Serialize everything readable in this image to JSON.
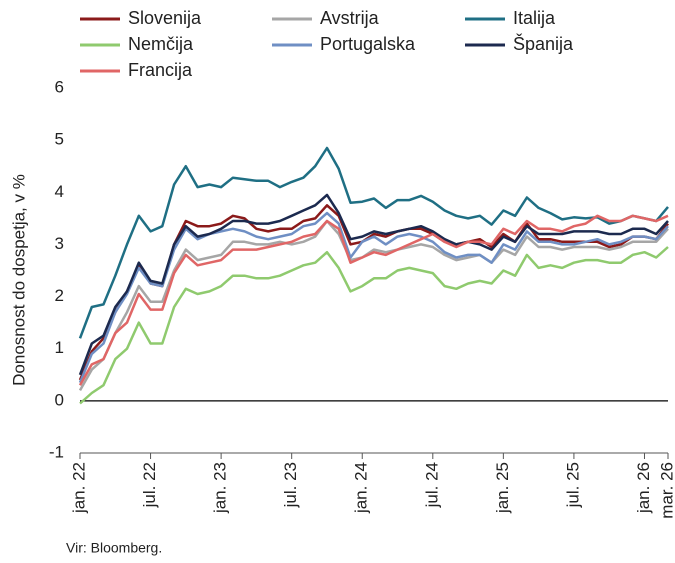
{
  "chart_data": {
    "type": "line",
    "y_label": "Donosnost do dospetja, v %",
    "source": "Vir: Bloomberg.",
    "categories": [
      "jan. 22",
      null,
      null,
      null,
      null,
      null,
      "jul. 22",
      null,
      null,
      null,
      null,
      null,
      "jan. 23",
      null,
      null,
      null,
      null,
      null,
      "jul. 23",
      null,
      null,
      null,
      null,
      null,
      "jan. 24",
      null,
      null,
      null,
      null,
      null,
      "jul. 24",
      null,
      null,
      null,
      null,
      null,
      "jan. 25",
      null,
      null,
      null,
      null,
      null,
      "jul. 25",
      null,
      null,
      null,
      null,
      null,
      "jan. 26",
      null,
      "mar. 26"
    ],
    "ylim": [
      -1,
      6
    ],
    "yticks": [
      -1,
      0,
      1,
      2,
      3,
      4,
      5,
      6
    ],
    "series": [
      {
        "name": "Slovenija",
        "color": "#8b1a1a",
        "values": [
          0.4,
          0.95,
          1.2,
          1.7,
          2.1,
          2.6,
          2.25,
          2.2,
          3.0,
          3.45,
          3.35,
          3.35,
          3.4,
          3.55,
          3.5,
          3.3,
          3.25,
          3.3,
          3.3,
          3.45,
          3.5,
          3.75,
          3.55,
          3.0,
          3.05,
          3.2,
          3.15,
          3.25,
          3.3,
          3.3,
          3.2,
          3.05,
          3.0,
          3.05,
          3.1,
          2.95,
          3.2,
          3.05,
          3.4,
          3.1,
          3.1,
          3.05,
          3.05,
          3.05,
          3.05,
          2.95,
          3.0,
          3.15,
          3.15,
          3.1,
          3.4
        ]
      },
      {
        "name": "Avstrija",
        "color": "#a6a6a6",
        "values": [
          0.2,
          0.6,
          0.8,
          1.3,
          1.7,
          2.2,
          1.9,
          1.9,
          2.5,
          2.9,
          2.7,
          2.75,
          2.8,
          3.05,
          3.05,
          3.0,
          3.0,
          3.05,
          3.0,
          3.05,
          3.15,
          3.45,
          3.2,
          2.7,
          2.75,
          2.9,
          2.85,
          2.9,
          2.95,
          3.0,
          2.95,
          2.8,
          2.7,
          2.75,
          2.8,
          2.65,
          2.9,
          2.8,
          3.15,
          2.95,
          2.95,
          2.9,
          2.95,
          2.95,
          2.95,
          2.9,
          2.95,
          3.05,
          3.05,
          3.05,
          3.3
        ]
      },
      {
        "name": "Italija",
        "color": "#1f6f84",
        "values": [
          1.2,
          1.8,
          1.85,
          2.4,
          3.0,
          3.55,
          3.25,
          3.35,
          4.15,
          4.5,
          4.1,
          4.15,
          4.1,
          4.28,
          4.25,
          4.22,
          4.22,
          4.1,
          4.2,
          4.28,
          4.5,
          4.85,
          4.45,
          3.8,
          3.82,
          3.88,
          3.7,
          3.85,
          3.85,
          3.93,
          3.82,
          3.65,
          3.55,
          3.5,
          3.55,
          3.38,
          3.65,
          3.55,
          3.9,
          3.7,
          3.6,
          3.48,
          3.52,
          3.5,
          3.52,
          3.4,
          3.45,
          3.55,
          3.5,
          3.45,
          3.72
        ]
      },
      {
        "name": "Nemčija",
        "color": "#8fca6e",
        "values": [
          -0.05,
          0.15,
          0.3,
          0.8,
          1.0,
          1.5,
          1.1,
          1.1,
          1.8,
          2.15,
          2.05,
          2.1,
          2.2,
          2.4,
          2.4,
          2.35,
          2.35,
          2.4,
          2.5,
          2.6,
          2.65,
          2.85,
          2.55,
          2.1,
          2.2,
          2.35,
          2.35,
          2.5,
          2.55,
          2.5,
          2.45,
          2.2,
          2.15,
          2.25,
          2.3,
          2.25,
          2.5,
          2.4,
          2.8,
          2.55,
          2.6,
          2.55,
          2.65,
          2.7,
          2.7,
          2.65,
          2.65,
          2.8,
          2.85,
          2.75,
          2.95
        ]
      },
      {
        "name": "Portugalska",
        "color": "#6f8fc4",
        "values": [
          0.35,
          0.9,
          1.1,
          1.7,
          2.05,
          2.55,
          2.25,
          2.2,
          2.9,
          3.3,
          3.1,
          3.2,
          3.25,
          3.3,
          3.25,
          3.15,
          3.1,
          3.15,
          3.2,
          3.35,
          3.4,
          3.6,
          3.4,
          2.75,
          3.05,
          3.15,
          3.0,
          3.15,
          3.2,
          3.15,
          3.05,
          2.85,
          2.75,
          2.8,
          2.8,
          2.65,
          3.0,
          2.9,
          3.25,
          3.05,
          3.05,
          3.0,
          3.0,
          3.05,
          3.1,
          3.0,
          3.05,
          3.15,
          3.15,
          3.1,
          3.35
        ]
      },
      {
        "name": "Španija",
        "color": "#1c2a4f",
        "values": [
          0.5,
          1.1,
          1.25,
          1.8,
          2.1,
          2.65,
          2.3,
          2.25,
          3.0,
          3.35,
          3.15,
          3.2,
          3.3,
          3.45,
          3.45,
          3.4,
          3.4,
          3.45,
          3.55,
          3.65,
          3.75,
          3.95,
          3.6,
          3.1,
          3.15,
          3.25,
          3.2,
          3.25,
          3.3,
          3.35,
          3.25,
          3.1,
          3.0,
          3.05,
          3.0,
          2.9,
          3.15,
          3.05,
          3.35,
          3.2,
          3.2,
          3.2,
          3.25,
          3.25,
          3.25,
          3.2,
          3.2,
          3.3,
          3.3,
          3.2,
          3.45
        ]
      },
      {
        "name": "Francija",
        "color": "#e06666",
        "values": [
          0.3,
          0.7,
          0.8,
          1.3,
          1.5,
          2.05,
          1.75,
          1.75,
          2.45,
          2.8,
          2.6,
          2.65,
          2.7,
          2.9,
          2.9,
          2.9,
          2.95,
          3.0,
          3.05,
          3.15,
          3.2,
          3.45,
          3.3,
          2.65,
          2.75,
          2.85,
          2.8,
          2.9,
          3.0,
          3.1,
          3.2,
          3.05,
          2.95,
          3.05,
          3.05,
          3.0,
          3.3,
          3.2,
          3.45,
          3.3,
          3.3,
          3.25,
          3.35,
          3.4,
          3.55,
          3.45,
          3.45,
          3.55,
          3.5,
          3.45,
          3.55
        ]
      }
    ]
  }
}
